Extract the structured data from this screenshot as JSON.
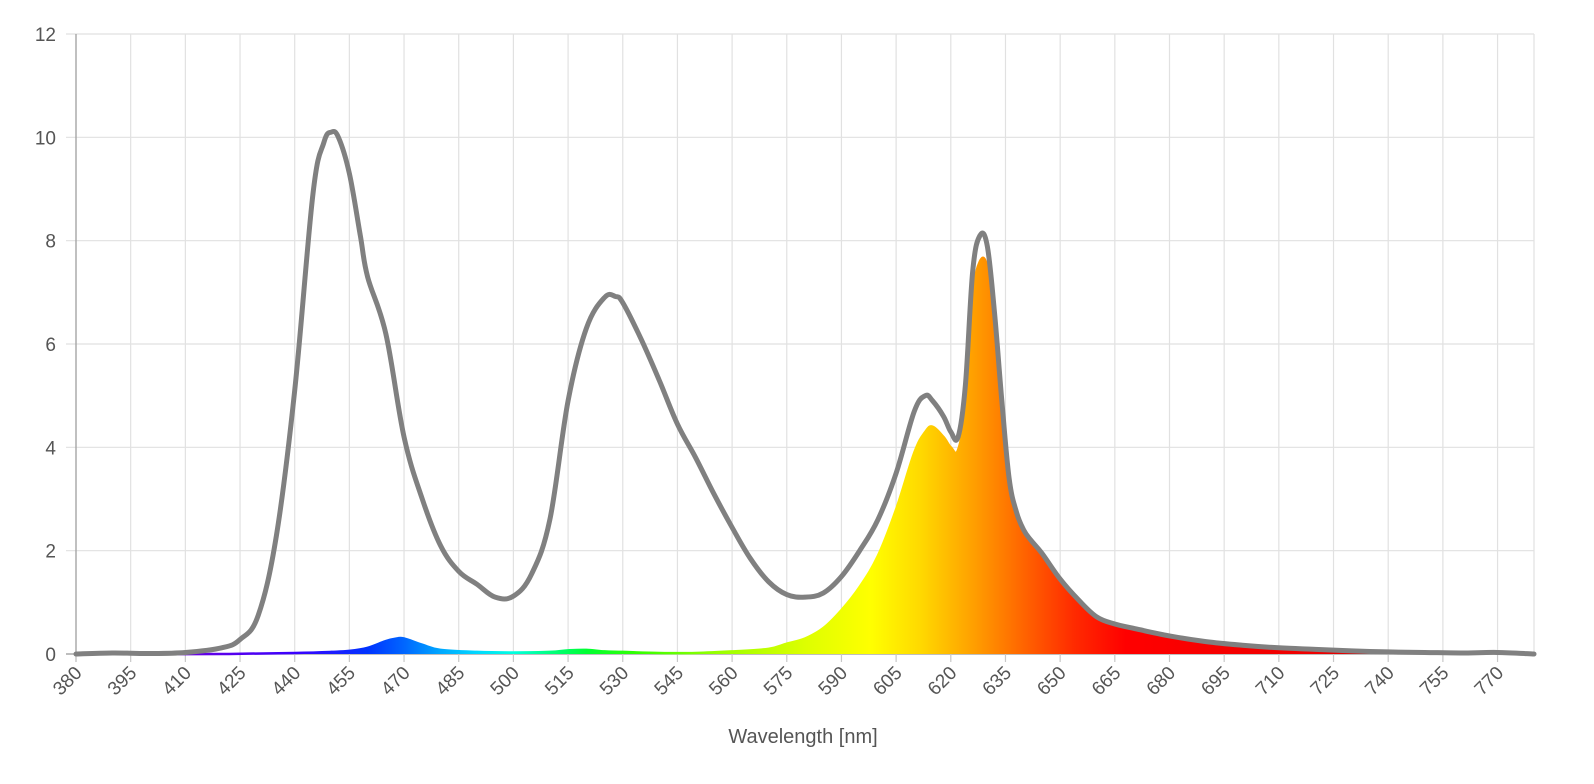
{
  "chart_data": {
    "type": "line",
    "title": "",
    "xlabel": "Wavelength [nm]",
    "ylabel": "",
    "xlim": [
      380,
      780
    ],
    "ylim": [
      0,
      12
    ],
    "grid": true,
    "legend": "none",
    "x_ticks": [
      "380",
      "395",
      "410",
      "425",
      "440",
      "455",
      "470",
      "485",
      "500",
      "515",
      "530",
      "545",
      "560",
      "575",
      "590",
      "605",
      "620",
      "635",
      "650",
      "665",
      "680",
      "695",
      "710",
      "725",
      "740",
      "755",
      "770"
    ],
    "y_ticks": [
      "0",
      "2",
      "4",
      "6",
      "8",
      "10",
      "12"
    ],
    "series": [
      {
        "kind": "outline",
        "color": "#808080",
        "x": [
          380,
          390,
          400,
          410,
          420,
          425,
          430,
          435,
          440,
          445,
          448,
          450,
          452,
          455,
          458,
          460,
          465,
          470,
          475,
          480,
          485,
          490,
          495,
          500,
          505,
          510,
          515,
          520,
          525,
          528,
          530,
          535,
          540,
          545,
          550,
          555,
          560,
          565,
          570,
          575,
          580,
          585,
          590,
          595,
          600,
          605,
          610,
          613,
          615,
          618,
          620,
          622,
          624,
          626,
          628,
          630,
          632,
          634,
          636,
          638,
          640,
          642,
          645,
          650,
          655,
          660,
          665,
          670,
          680,
          690,
          700,
          710,
          720,
          730,
          740,
          750,
          760,
          770,
          780
        ],
        "y": [
          0,
          0.02,
          0.01,
          0.03,
          0.12,
          0.28,
          0.75,
          2.3,
          5.1,
          8.9,
          9.9,
          10.1,
          10.0,
          9.3,
          8.1,
          7.3,
          6.2,
          4.2,
          3.0,
          2.1,
          1.6,
          1.35,
          1.1,
          1.12,
          1.55,
          2.6,
          4.9,
          6.3,
          6.9,
          6.92,
          6.8,
          6.1,
          5.3,
          4.45,
          3.8,
          3.1,
          2.45,
          1.85,
          1.4,
          1.15,
          1.1,
          1.18,
          1.5,
          2.0,
          2.6,
          3.5,
          4.7,
          5.0,
          4.9,
          4.6,
          4.3,
          4.2,
          5.2,
          7.4,
          8.1,
          7.9,
          6.6,
          4.9,
          3.4,
          2.75,
          2.4,
          2.2,
          1.95,
          1.45,
          1.05,
          0.72,
          0.58,
          0.5,
          0.35,
          0.24,
          0.17,
          0.12,
          0.09,
          0.06,
          0.04,
          0.03,
          0.02,
          0.03,
          0
        ]
      },
      {
        "kind": "filled-spectrum",
        "x": [
          380,
          400,
          420,
          440,
          450,
          455,
          460,
          465,
          468,
          470,
          475,
          480,
          490,
          500,
          510,
          515,
          520,
          525,
          530,
          540,
          550,
          560,
          570,
          575,
          580,
          585,
          590,
          595,
          600,
          605,
          610,
          613,
          615,
          618,
          620,
          622,
          624,
          626,
          628,
          630,
          632,
          634,
          636,
          638,
          640,
          642,
          645,
          650,
          655,
          660,
          665,
          670,
          680,
          690,
          700,
          710,
          720,
          730,
          740,
          750,
          760,
          770,
          780
        ],
        "y": [
          0,
          0,
          0,
          0.02,
          0.04,
          0.06,
          0.12,
          0.25,
          0.3,
          0.3,
          0.18,
          0.08,
          0.04,
          0.03,
          0.04,
          0.07,
          0.08,
          0.05,
          0.04,
          0.02,
          0.02,
          0.05,
          0.1,
          0.2,
          0.3,
          0.5,
          0.85,
          1.3,
          1.9,
          2.8,
          3.9,
          4.3,
          4.4,
          4.2,
          4.0,
          3.95,
          4.8,
          6.9,
          7.6,
          7.5,
          6.5,
          4.9,
          3.4,
          2.75,
          2.4,
          2.2,
          1.95,
          1.45,
          1.05,
          0.72,
          0.58,
          0.5,
          0.35,
          0.24,
          0.17,
          0.12,
          0.09,
          0.06,
          0.04,
          0.03,
          0.02,
          0.03,
          0
        ]
      }
    ]
  }
}
